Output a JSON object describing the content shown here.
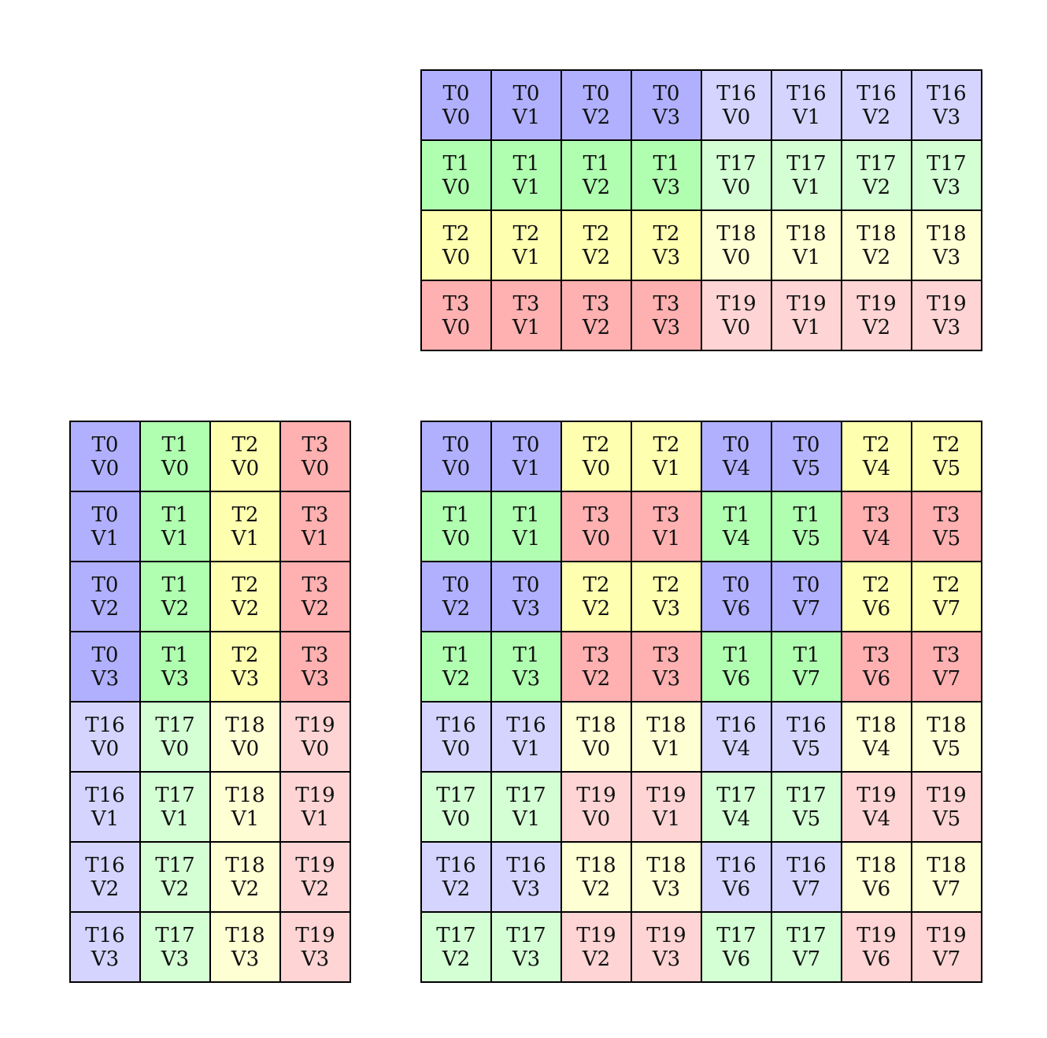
{
  "thread_colors": {
    "T0": "#b0b0ff",
    "T1": "#b0ffb0",
    "T2": "#ffffb0",
    "T3": "#ffb0b0",
    "T16": "#d4d4ff",
    "T17": "#d4ffd4",
    "T18": "#ffffd4",
    "T19": "#ffd4d4"
  },
  "grids": {
    "top": [
      [
        "T0\nV0",
        "T0\nV1",
        "T0\nV2",
        "T0\nV3",
        "T16\nV0",
        "T16\nV1",
        "T16\nV2",
        "T16\nV3"
      ],
      [
        "T1\nV0",
        "T1\nV1",
        "T1\nV2",
        "T1\nV3",
        "T17\nV0",
        "T17\nV1",
        "T17\nV2",
        "T17\nV3"
      ],
      [
        "T2\nV0",
        "T2\nV1",
        "T2\nV2",
        "T2\nV3",
        "T18\nV0",
        "T18\nV1",
        "T18\nV2",
        "T18\nV3"
      ],
      [
        "T3\nV0",
        "T3\nV1",
        "T3\nV2",
        "T3\nV3",
        "T19\nV0",
        "T19\nV1",
        "T19\nV2",
        "T19\nV3"
      ]
    ],
    "left": [
      [
        "T0\nV0",
        "T1\nV0",
        "T2\nV0",
        "T3\nV0"
      ],
      [
        "T0\nV1",
        "T1\nV1",
        "T2\nV1",
        "T3\nV1"
      ],
      [
        "T0\nV2",
        "T1\nV2",
        "T2\nV2",
        "T3\nV2"
      ],
      [
        "T0\nV3",
        "T1\nV3",
        "T2\nV3",
        "T3\nV3"
      ],
      [
        "T16\nV0",
        "T17\nV0",
        "T18\nV0",
        "T19\nV0"
      ],
      [
        "T16\nV1",
        "T17\nV1",
        "T18\nV1",
        "T19\nV1"
      ],
      [
        "T16\nV2",
        "T17\nV2",
        "T18\nV2",
        "T19\nV2"
      ],
      [
        "T16\nV3",
        "T17\nV3",
        "T18\nV3",
        "T19\nV3"
      ]
    ],
    "right": [
      [
        "T0\nV0",
        "T0\nV1",
        "T2\nV0",
        "T2\nV1",
        "T0\nV4",
        "T0\nV5",
        "T2\nV4",
        "T2\nV5"
      ],
      [
        "T1\nV0",
        "T1\nV1",
        "T3\nV0",
        "T3\nV1",
        "T1\nV4",
        "T1\nV5",
        "T3\nV4",
        "T3\nV5"
      ],
      [
        "T0\nV2",
        "T0\nV3",
        "T2\nV2",
        "T2\nV3",
        "T0\nV6",
        "T0\nV7",
        "T2\nV6",
        "T2\nV7"
      ],
      [
        "T1\nV2",
        "T1\nV3",
        "T3\nV2",
        "T3\nV3",
        "T1\nV6",
        "T1\nV7",
        "T3\nV6",
        "T3\nV7"
      ],
      [
        "T16\nV0",
        "T16\nV1",
        "T18\nV0",
        "T18\nV1",
        "T16\nV4",
        "T16\nV5",
        "T18\nV4",
        "T18\nV5"
      ],
      [
        "T17\nV0",
        "T17\nV1",
        "T19\nV0",
        "T19\nV1",
        "T17\nV4",
        "T17\nV5",
        "T19\nV4",
        "T19\nV5"
      ],
      [
        "T16\nV2",
        "T16\nV3",
        "T18\nV2",
        "T18\nV3",
        "T16\nV6",
        "T16\nV7",
        "T18\nV6",
        "T18\nV7"
      ],
      [
        "T17\nV2",
        "T17\nV3",
        "T19\nV2",
        "T19\nV3",
        "T17\nV6",
        "T17\nV7",
        "T19\nV6",
        "T19\nV7"
      ]
    ]
  }
}
